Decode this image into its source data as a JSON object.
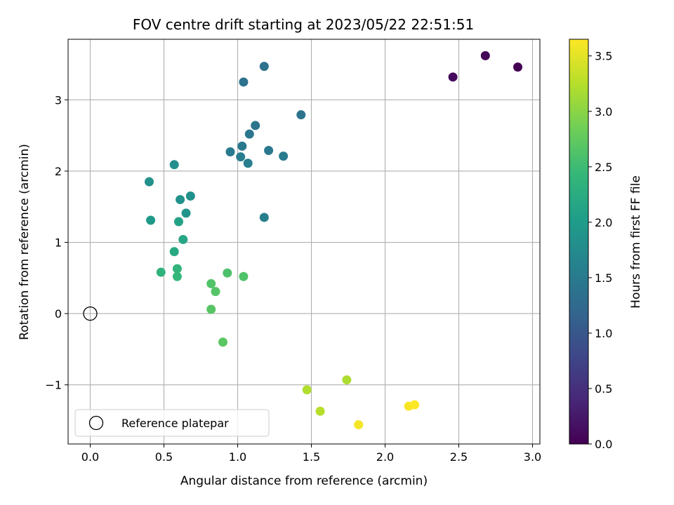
{
  "chart_data": {
    "type": "scatter",
    "title": "FOV centre drift starting at 2023/05/22 22:51:51",
    "xlabel": "Angular distance from reference (arcmin)",
    "ylabel": "Rotation from reference (arcmin)",
    "xlim": [
      -0.15,
      3.05
    ],
    "ylim": [
      -1.83,
      3.85
    ],
    "xticks": [
      0.0,
      0.5,
      1.0,
      1.5,
      2.0,
      2.5,
      3.0
    ],
    "xtick_labels": [
      "0.0",
      "0.5",
      "1.0",
      "1.5",
      "2.0",
      "2.5",
      "3.0"
    ],
    "yticks": [
      -1,
      0,
      1,
      2,
      3
    ],
    "ytick_labels": [
      "−1",
      "0",
      "1",
      "2",
      "3"
    ],
    "grid": true,
    "legend": {
      "placement": "lower-left",
      "entries": [
        "Reference platepar"
      ]
    },
    "reference_point": {
      "x": 0.0,
      "y": 0.0,
      "label": "Reference platepar"
    },
    "colorbar": {
      "label": "Hours from first FF file",
      "colormap": "viridis",
      "range": [
        0.0,
        3.65
      ],
      "ticks": [
        0.0,
        0.5,
        1.0,
        1.5,
        2.0,
        2.5,
        3.0,
        3.5
      ],
      "tick_labels": [
        "0.0",
        "0.5",
        "1.0",
        "1.5",
        "2.0",
        "2.5",
        "3.0",
        "3.5"
      ]
    },
    "points": [
      {
        "x": 2.9,
        "y": 3.46,
        "c": 0.0
      },
      {
        "x": 2.68,
        "y": 3.62,
        "c": 0.05
      },
      {
        "x": 2.46,
        "y": 3.32,
        "c": 0.1
      },
      {
        "x": 1.18,
        "y": 3.47,
        "c": 1.35
      },
      {
        "x": 1.04,
        "y": 3.25,
        "c": 1.38
      },
      {
        "x": 1.43,
        "y": 2.79,
        "c": 1.4
      },
      {
        "x": 1.12,
        "y": 2.64,
        "c": 1.42
      },
      {
        "x": 1.08,
        "y": 2.52,
        "c": 1.44
      },
      {
        "x": 1.03,
        "y": 2.35,
        "c": 1.46
      },
      {
        "x": 1.21,
        "y": 2.29,
        "c": 1.48
      },
      {
        "x": 0.95,
        "y": 2.27,
        "c": 1.5
      },
      {
        "x": 1.31,
        "y": 2.21,
        "c": 1.52
      },
      {
        "x": 1.02,
        "y": 2.2,
        "c": 1.54
      },
      {
        "x": 1.07,
        "y": 2.11,
        "c": 1.56
      },
      {
        "x": 1.18,
        "y": 1.35,
        "c": 1.58
      },
      {
        "x": 0.57,
        "y": 2.09,
        "c": 1.8
      },
      {
        "x": 0.4,
        "y": 1.85,
        "c": 1.82
      },
      {
        "x": 0.68,
        "y": 1.65,
        "c": 1.84
      },
      {
        "x": 0.61,
        "y": 1.6,
        "c": 1.86
      },
      {
        "x": 0.65,
        "y": 1.41,
        "c": 1.9
      },
      {
        "x": 0.41,
        "y": 1.31,
        "c": 1.95
      },
      {
        "x": 0.6,
        "y": 1.29,
        "c": 2.1
      },
      {
        "x": 0.63,
        "y": 1.04,
        "c": 2.15
      },
      {
        "x": 0.57,
        "y": 0.87,
        "c": 2.2
      },
      {
        "x": 0.48,
        "y": 0.58,
        "c": 2.35
      },
      {
        "x": 0.59,
        "y": 0.63,
        "c": 2.38
      },
      {
        "x": 0.59,
        "y": 0.52,
        "c": 2.42
      },
      {
        "x": 0.93,
        "y": 0.57,
        "c": 2.6
      },
      {
        "x": 1.04,
        "y": 0.52,
        "c": 2.62
      },
      {
        "x": 0.82,
        "y": 0.42,
        "c": 2.64
      },
      {
        "x": 0.85,
        "y": 0.31,
        "c": 2.66
      },
      {
        "x": 0.82,
        "y": 0.06,
        "c": 2.68
      },
      {
        "x": 0.9,
        "y": -0.4,
        "c": 2.7
      },
      {
        "x": 1.74,
        "y": -0.93,
        "c": 3.2
      },
      {
        "x": 1.47,
        "y": -1.07,
        "c": 3.22
      },
      {
        "x": 1.56,
        "y": -1.37,
        "c": 3.25
      },
      {
        "x": 1.82,
        "y": -1.56,
        "c": 3.6
      },
      {
        "x": 2.16,
        "y": -1.3,
        "c": 3.62
      },
      {
        "x": 2.2,
        "y": -1.28,
        "c": 3.64
      }
    ]
  }
}
